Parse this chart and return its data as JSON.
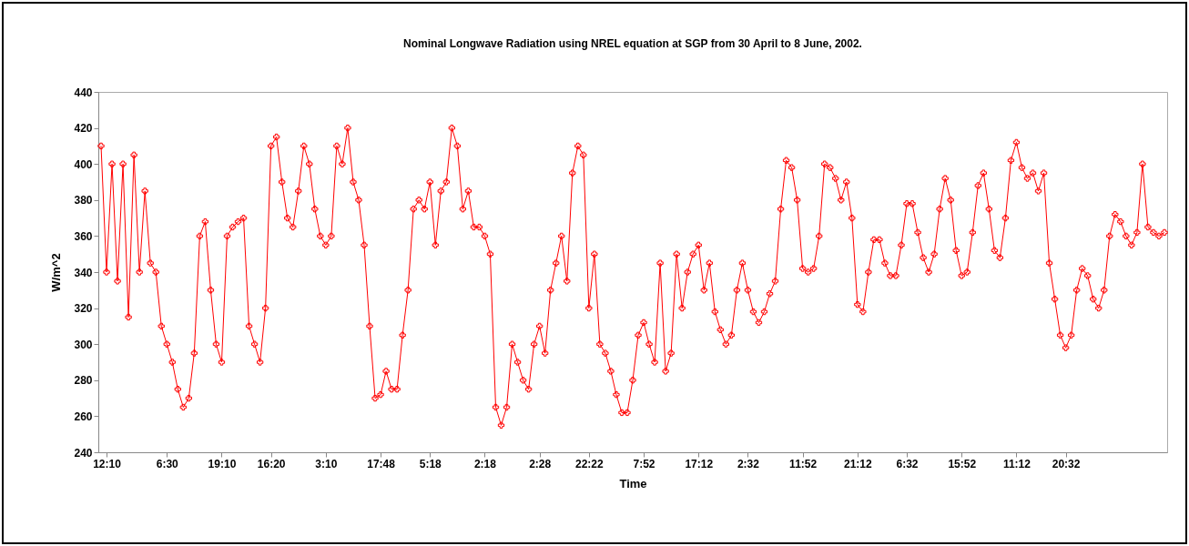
{
  "chart_data": {
    "type": "line",
    "title": "Nominal Longwave Radiation using NREL equation at SGP from 30 April to 8 June, 2002.",
    "xlabel": "Time",
    "ylabel": "W/m^2",
    "categories": [
      null,
      "12:10",
      null,
      null,
      null,
      null,
      null,
      null,
      null,
      null,
      null,
      null,
      "6:30",
      null,
      null,
      null,
      null,
      null,
      null,
      null,
      null,
      null,
      "19:10",
      null,
      null,
      null,
      null,
      null,
      null,
      null,
      null,
      "16:20",
      null,
      null,
      null,
      null,
      null,
      null,
      null,
      null,
      null,
      "3:10",
      null,
      null,
      null,
      null,
      null,
      null,
      null,
      null,
      null,
      "17:48",
      null,
      null,
      null,
      null,
      null,
      null,
      null,
      null,
      "5:18",
      null,
      null,
      null,
      null,
      null,
      null,
      null,
      null,
      null,
      "2:18",
      null,
      null,
      null,
      null,
      null,
      null,
      null,
      null,
      null,
      "2:28",
      null,
      null,
      null,
      null,
      null,
      null,
      null,
      null,
      "22:22",
      null,
      null,
      null,
      null,
      null,
      null,
      null,
      null,
      null,
      "7:52",
      null,
      null,
      null,
      null,
      null,
      null,
      null,
      null,
      null,
      "17:12",
      null,
      null,
      null,
      null,
      null,
      null,
      null,
      null,
      "2:32",
      null,
      null,
      null,
      null,
      null,
      null,
      null,
      null,
      null,
      "11:52",
      null,
      null,
      null,
      null,
      null,
      null,
      null,
      null,
      null,
      "21:12",
      null,
      null,
      null,
      null,
      null,
      null,
      null,
      null,
      "6:32",
      null,
      null,
      null,
      null,
      null,
      null,
      null,
      null,
      null,
      "15:52",
      null,
      null,
      null,
      null,
      null,
      null,
      null,
      null,
      null,
      "11:12",
      null,
      null,
      null,
      null,
      null,
      null,
      null,
      null,
      "20:32",
      null,
      null,
      null,
      null,
      null,
      null,
      null,
      null,
      null,
      null,
      null,
      null,
      null,
      null,
      null,
      null,
      null,
      null
    ],
    "series": [
      {
        "color": "#ff0000",
        "values": [
          410,
          340,
          400,
          335,
          400,
          315,
          405,
          340,
          385,
          345,
          340,
          310,
          300,
          290,
          275,
          265,
          270,
          295,
          360,
          368,
          330,
          300,
          290,
          360,
          365,
          368,
          370,
          310,
          300,
          290,
          320,
          410,
          415,
          390,
          370,
          365,
          385,
          410,
          400,
          375,
          360,
          355,
          360,
          410,
          400,
          420,
          390,
          380,
          355,
          310,
          270,
          272,
          285,
          275,
          275,
          305,
          330,
          375,
          380,
          375,
          390,
          355,
          385,
          390,
          420,
          410,
          375,
          385,
          365,
          365,
          360,
          350,
          265,
          255,
          265,
          300,
          290,
          280,
          275,
          300,
          310,
          295,
          330,
          345,
          360,
          335,
          395,
          410,
          405,
          320,
          350,
          300,
          295,
          285,
          272,
          262,
          262,
          280,
          305,
          312,
          300,
          290,
          345,
          285,
          295,
          350,
          320,
          340,
          350,
          355,
          330,
          345,
          318,
          308,
          300,
          305,
          330,
          345,
          330,
          318,
          312,
          318,
          328,
          335,
          375,
          402,
          398,
          380,
          342,
          340,
          342,
          360,
          400,
          398,
          392,
          380,
          390,
          370,
          322,
          318,
          340,
          358,
          358,
          345,
          338,
          338,
          355,
          378,
          378,
          362,
          348,
          340,
          350,
          375,
          392,
          380,
          352,
          338,
          340,
          362,
          388,
          395,
          375,
          352,
          348,
          370,
          402,
          412,
          398,
          392,
          395,
          385,
          395,
          345,
          325,
          305,
          298,
          305,
          330,
          342,
          338,
          325,
          320,
          330,
          360,
          372,
          368,
          360,
          355,
          362,
          400,
          365,
          362,
          360,
          362
        ]
      }
    ],
    "ylim": [
      240,
      440
    ],
    "yticks": [
      240,
      260,
      280,
      300,
      320,
      340,
      360,
      380,
      400,
      420,
      440
    ],
    "grid": false,
    "marker": "cross",
    "line_style": "solid"
  }
}
